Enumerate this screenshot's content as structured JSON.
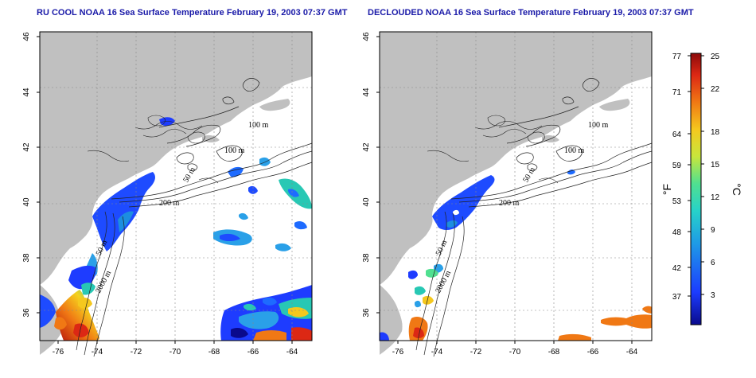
{
  "left_map": {
    "title": "RU COOL NOAA 16 Sea Surface Temperature February 19, 2003 07:37 GMT",
    "x_ticks": [
      "-76",
      "-74",
      "-72",
      "-70",
      "-68",
      "-66",
      "-64"
    ],
    "y_ticks": [
      "46",
      "44",
      "42",
      "40",
      "38",
      "36"
    ],
    "contour_labels": [
      "100 m",
      "100 m",
      "50 m",
      "200 m",
      "50 m",
      "2000 m"
    ]
  },
  "right_map": {
    "title": "DECLOUDED NOAA 16 Sea Surface Temperature February 19, 2003 07:37 GMT",
    "x_ticks": [
      "-76",
      "-74",
      "-72",
      "-70",
      "-68",
      "-66",
      "-64"
    ],
    "y_ticks": [
      "46",
      "44",
      "42",
      "40",
      "38",
      "36"
    ],
    "contour_labels": [
      "100 m",
      "100 m",
      "50 m",
      "200 m",
      "50 m",
      "2000 m"
    ]
  },
  "colorbar": {
    "fahrenheit_label": "°F",
    "celsius_label": "°C",
    "fahrenheit_ticks": [
      "77",
      "71",
      "64",
      "59",
      "53",
      "48",
      "42",
      "37"
    ],
    "celsius_ticks": [
      "25",
      "22",
      "18",
      "15",
      "12",
      "9",
      "6",
      "3"
    ]
  },
  "colors": {
    "land": "#c0c0c0",
    "ocean": "#ffffff",
    "title": "#1a1aa8"
  }
}
